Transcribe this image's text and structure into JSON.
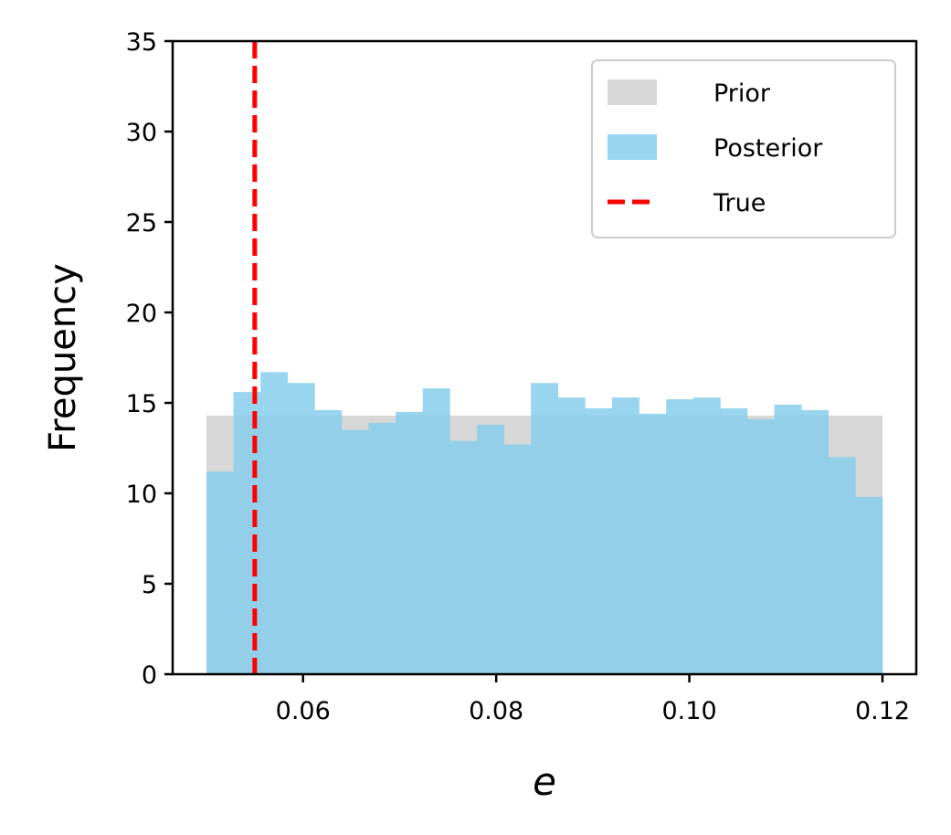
{
  "chart_data": {
    "type": "bar",
    "subtype": "histogram",
    "xlabel": "e",
    "ylabel": "Frequency",
    "xlim": [
      0.0465,
      0.1235
    ],
    "ylim": [
      0,
      35
    ],
    "xticks": [
      0.06,
      0.08,
      0.1,
      0.12
    ],
    "xtick_labels": [
      "0.06",
      "0.08",
      "0.10",
      "0.12"
    ],
    "yticks": [
      0,
      5,
      10,
      15,
      20,
      25,
      30,
      35
    ],
    "ytick_labels": [
      "0",
      "5",
      "10",
      "15",
      "20",
      "25",
      "30",
      "35"
    ],
    "grid": false,
    "legend_position": "top-right",
    "bin_range": [
      0.05,
      0.12
    ],
    "series": [
      {
        "name": "Prior",
        "kind": "histogram",
        "color": "#d3d3d3",
        "bin_edges": [
          0.05,
          0.12
        ],
        "values": [
          14.3
        ]
      },
      {
        "name": "Posterior",
        "kind": "histogram",
        "color": "#87ceeb",
        "bin_count": 25,
        "values": [
          11.2,
          15.6,
          16.7,
          16.1,
          14.6,
          13.5,
          13.9,
          14.5,
          15.8,
          12.9,
          13.8,
          12.7,
          16.1,
          15.3,
          14.7,
          15.3,
          14.4,
          15.2,
          15.3,
          14.7,
          14.1,
          14.9,
          14.6,
          12.0,
          9.8
        ]
      },
      {
        "name": "True",
        "kind": "vline",
        "color": "#ff0000",
        "x": 0.055
      }
    ],
    "legend": [
      "Prior",
      "Posterior",
      "True"
    ]
  }
}
